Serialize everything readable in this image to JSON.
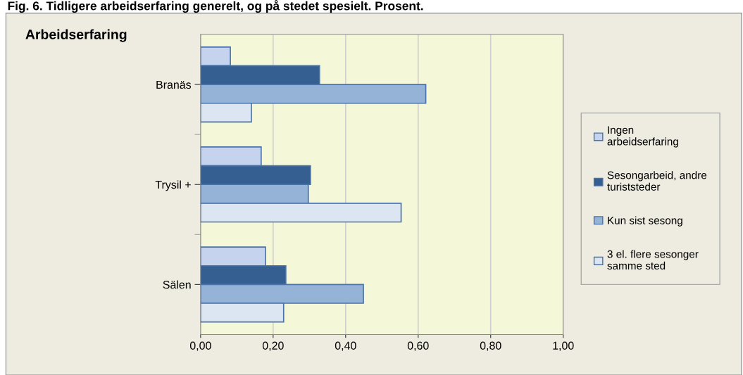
{
  "chart_data": {
    "type": "bar",
    "orientation": "horizontal",
    "title": "Arbeidserfaring",
    "annotations": [
      "Fig. 6. Tidligere arbeidserfaring generelt, og på stedet spesielt. Prosent."
    ],
    "categories": [
      "Branäs",
      "Trysil +",
      "Sälen"
    ],
    "series": [
      {
        "name": "Ingen arbeidserfaring",
        "color": "#c5d3ee",
        "values": [
          0.082,
          0.167,
          0.179
        ]
      },
      {
        "name": "Sesongarbeid, andre turiststeder",
        "color": "#365f91",
        "values": [
          0.328,
          0.303,
          0.235
        ]
      },
      {
        "name": "Kun sist sesong",
        "color": "#95b3d7",
        "values": [
          0.621,
          0.297,
          0.449
        ]
      },
      {
        "name": "3 el. flere sesonger samme sted",
        "color": "#dce6f2",
        "values": [
          0.14,
          0.553,
          0.229
        ]
      }
    ],
    "xlim": [
      0,
      1
    ],
    "xticks": [
      {
        "value": 0,
        "label": "0,00"
      },
      {
        "value": 0.2,
        "label": "0,20"
      },
      {
        "value": 0.4,
        "label": "0,40"
      },
      {
        "value": 0.6,
        "label": "0,60"
      },
      {
        "value": 0.8,
        "label": "0,80"
      },
      {
        "value": 1,
        "label": "1,00"
      }
    ],
    "grid": "x",
    "legend": "right"
  }
}
